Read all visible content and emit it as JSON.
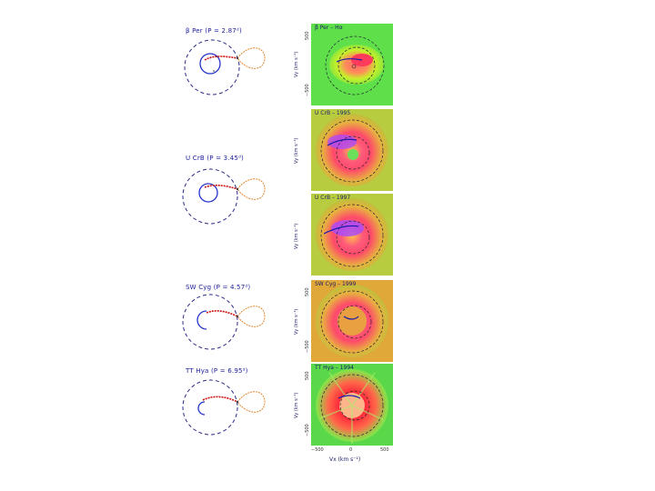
{
  "figure": {
    "panels": [
      {
        "system": "β Per (P = 2.87ᵈ)"
      },
      {
        "system": "U CrB (P = 3.45ᵈ)"
      },
      {
        "system": "SW Cyg (P = 4.57ᵈ)"
      },
      {
        "system": "TT Hya (P = 6.95ᵈ)"
      }
    ],
    "maps": [
      {
        "label": "β Per – Hα"
      },
      {
        "label": "U CrB – 1995"
      },
      {
        "label": "U CrB – 1997"
      },
      {
        "label": "SW Cyg – 1999"
      },
      {
        "label": "TT Hya – 1994"
      }
    ],
    "axes": {
      "y_label": "Vy (km s⁻¹)",
      "x_label": "Vx (km s⁻¹)",
      "ticks": [
        "500",
        "0",
        "−500"
      ]
    }
  }
}
